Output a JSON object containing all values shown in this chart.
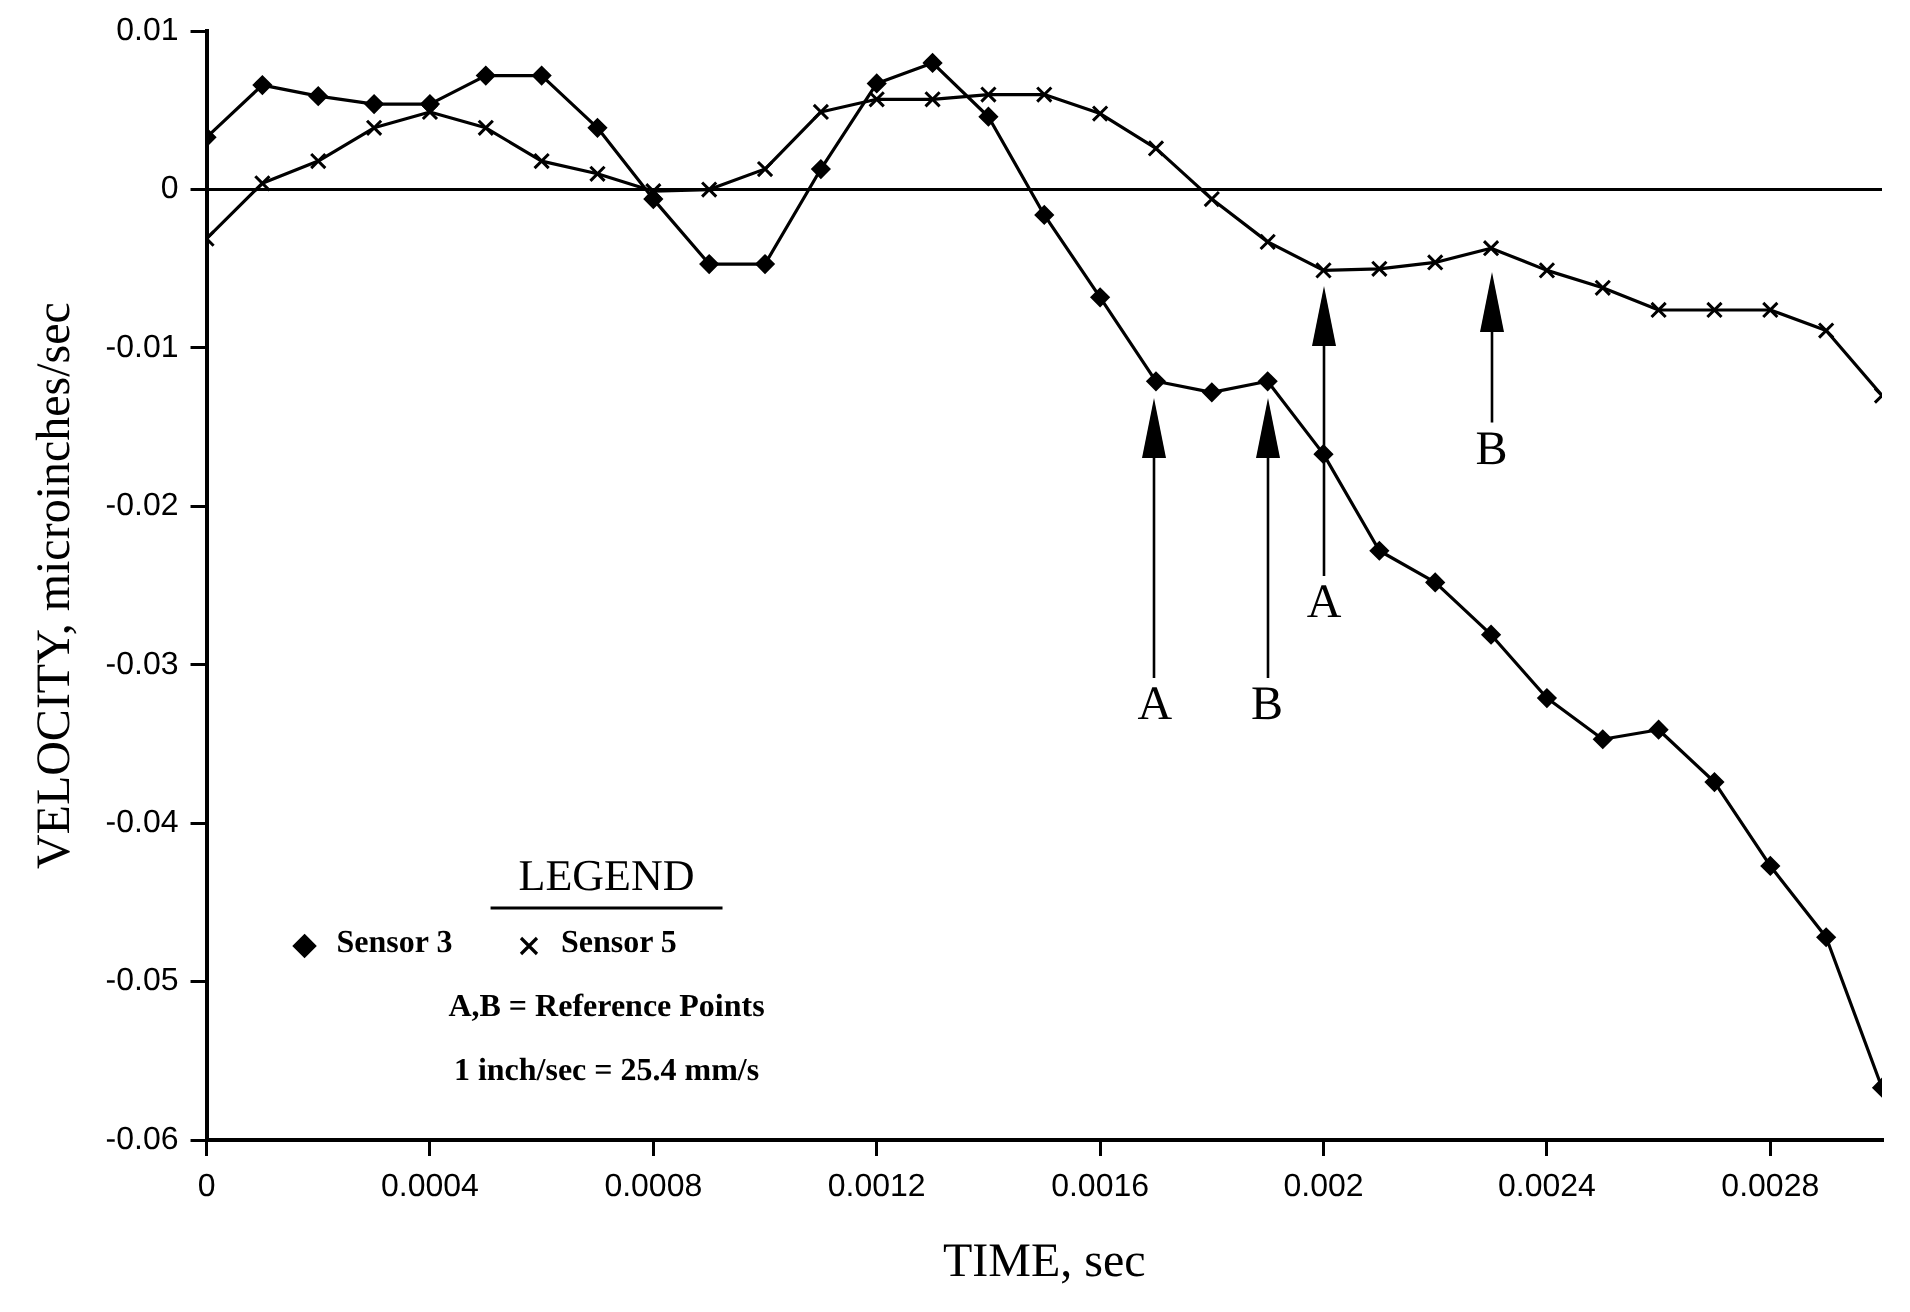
{
  "chart_data": {
    "type": "line",
    "xlabel": "TIME, sec",
    "ylabel": "VELOCITY, microinches/sec",
    "legend_title": "LEGEND",
    "x": [
      0,
      0.0001,
      0.0002,
      0.0003,
      0.0004,
      0.0005,
      0.0006,
      0.0007,
      0.0008,
      0.0009,
      0.001,
      0.0011,
      0.0012,
      0.0013,
      0.0014,
      0.0015,
      0.0016,
      0.0017,
      0.0018,
      0.0019,
      0.002,
      0.0021,
      0.0022,
      0.0023,
      0.0024,
      0.0025,
      0.0026,
      0.0027,
      0.0028,
      0.0029,
      0.003
    ],
    "series": [
      {
        "name": "Sensor 3",
        "color": "#000000",
        "marker": "diamond",
        "values": [
          0.0033,
          0.0066,
          0.0059,
          0.0054,
          0.0054,
          0.0072,
          0.0072,
          0.0039,
          -0.0006,
          -0.0047,
          -0.0047,
          0.0013,
          0.0067,
          0.008,
          0.0046,
          -0.0016,
          -0.0068,
          -0.0121,
          -0.0128,
          -0.0121,
          -0.0167,
          -0.0228,
          -0.0248,
          -0.0281,
          -0.0321,
          -0.0347,
          -0.0341,
          -0.0374,
          -0.0427,
          -0.0472,
          -0.0567
        ]
      },
      {
        "name": "Sensor 5",
        "color": "#000000",
        "marker": "cross",
        "values": [
          -0.0031,
          0.0004,
          0.0018,
          0.0039,
          0.0049,
          0.0039,
          0.0018,
          0.001,
          -0.0001,
          0,
          0.0013,
          0.0049,
          0.0057,
          0.0057,
          0.006,
          0.006,
          0.0048,
          0.0026,
          -0.0006,
          -0.0033,
          -0.0051,
          -0.005,
          -0.0046,
          -0.0037,
          -0.0051,
          -0.0062,
          -0.0076,
          -0.0076,
          -0.0076,
          -0.0089,
          -0.013
        ]
      }
    ],
    "xlim": [
      0,
      0.003
    ],
    "xticks": [
      0,
      0.0004,
      0.0008,
      0.0012,
      0.0016,
      0.002,
      0.0024,
      0.0028
    ],
    "ylim": [
      -0.06,
      0.01
    ],
    "yticks": [
      0.01,
      0,
      -0.01,
      -0.02,
      -0.03,
      -0.04,
      -0.05,
      -0.06
    ],
    "ref_lines": [
      {
        "axis": "y",
        "value": 0,
        "color": "#000000"
      }
    ],
    "annotations": [
      "A,B = Reference Points",
      "1 inch/sec = 25.4 mm/s",
      "A",
      "B",
      "A",
      "B"
    ],
    "legend": "bottom left",
    "grid": false,
    "line_style": "solid"
  }
}
